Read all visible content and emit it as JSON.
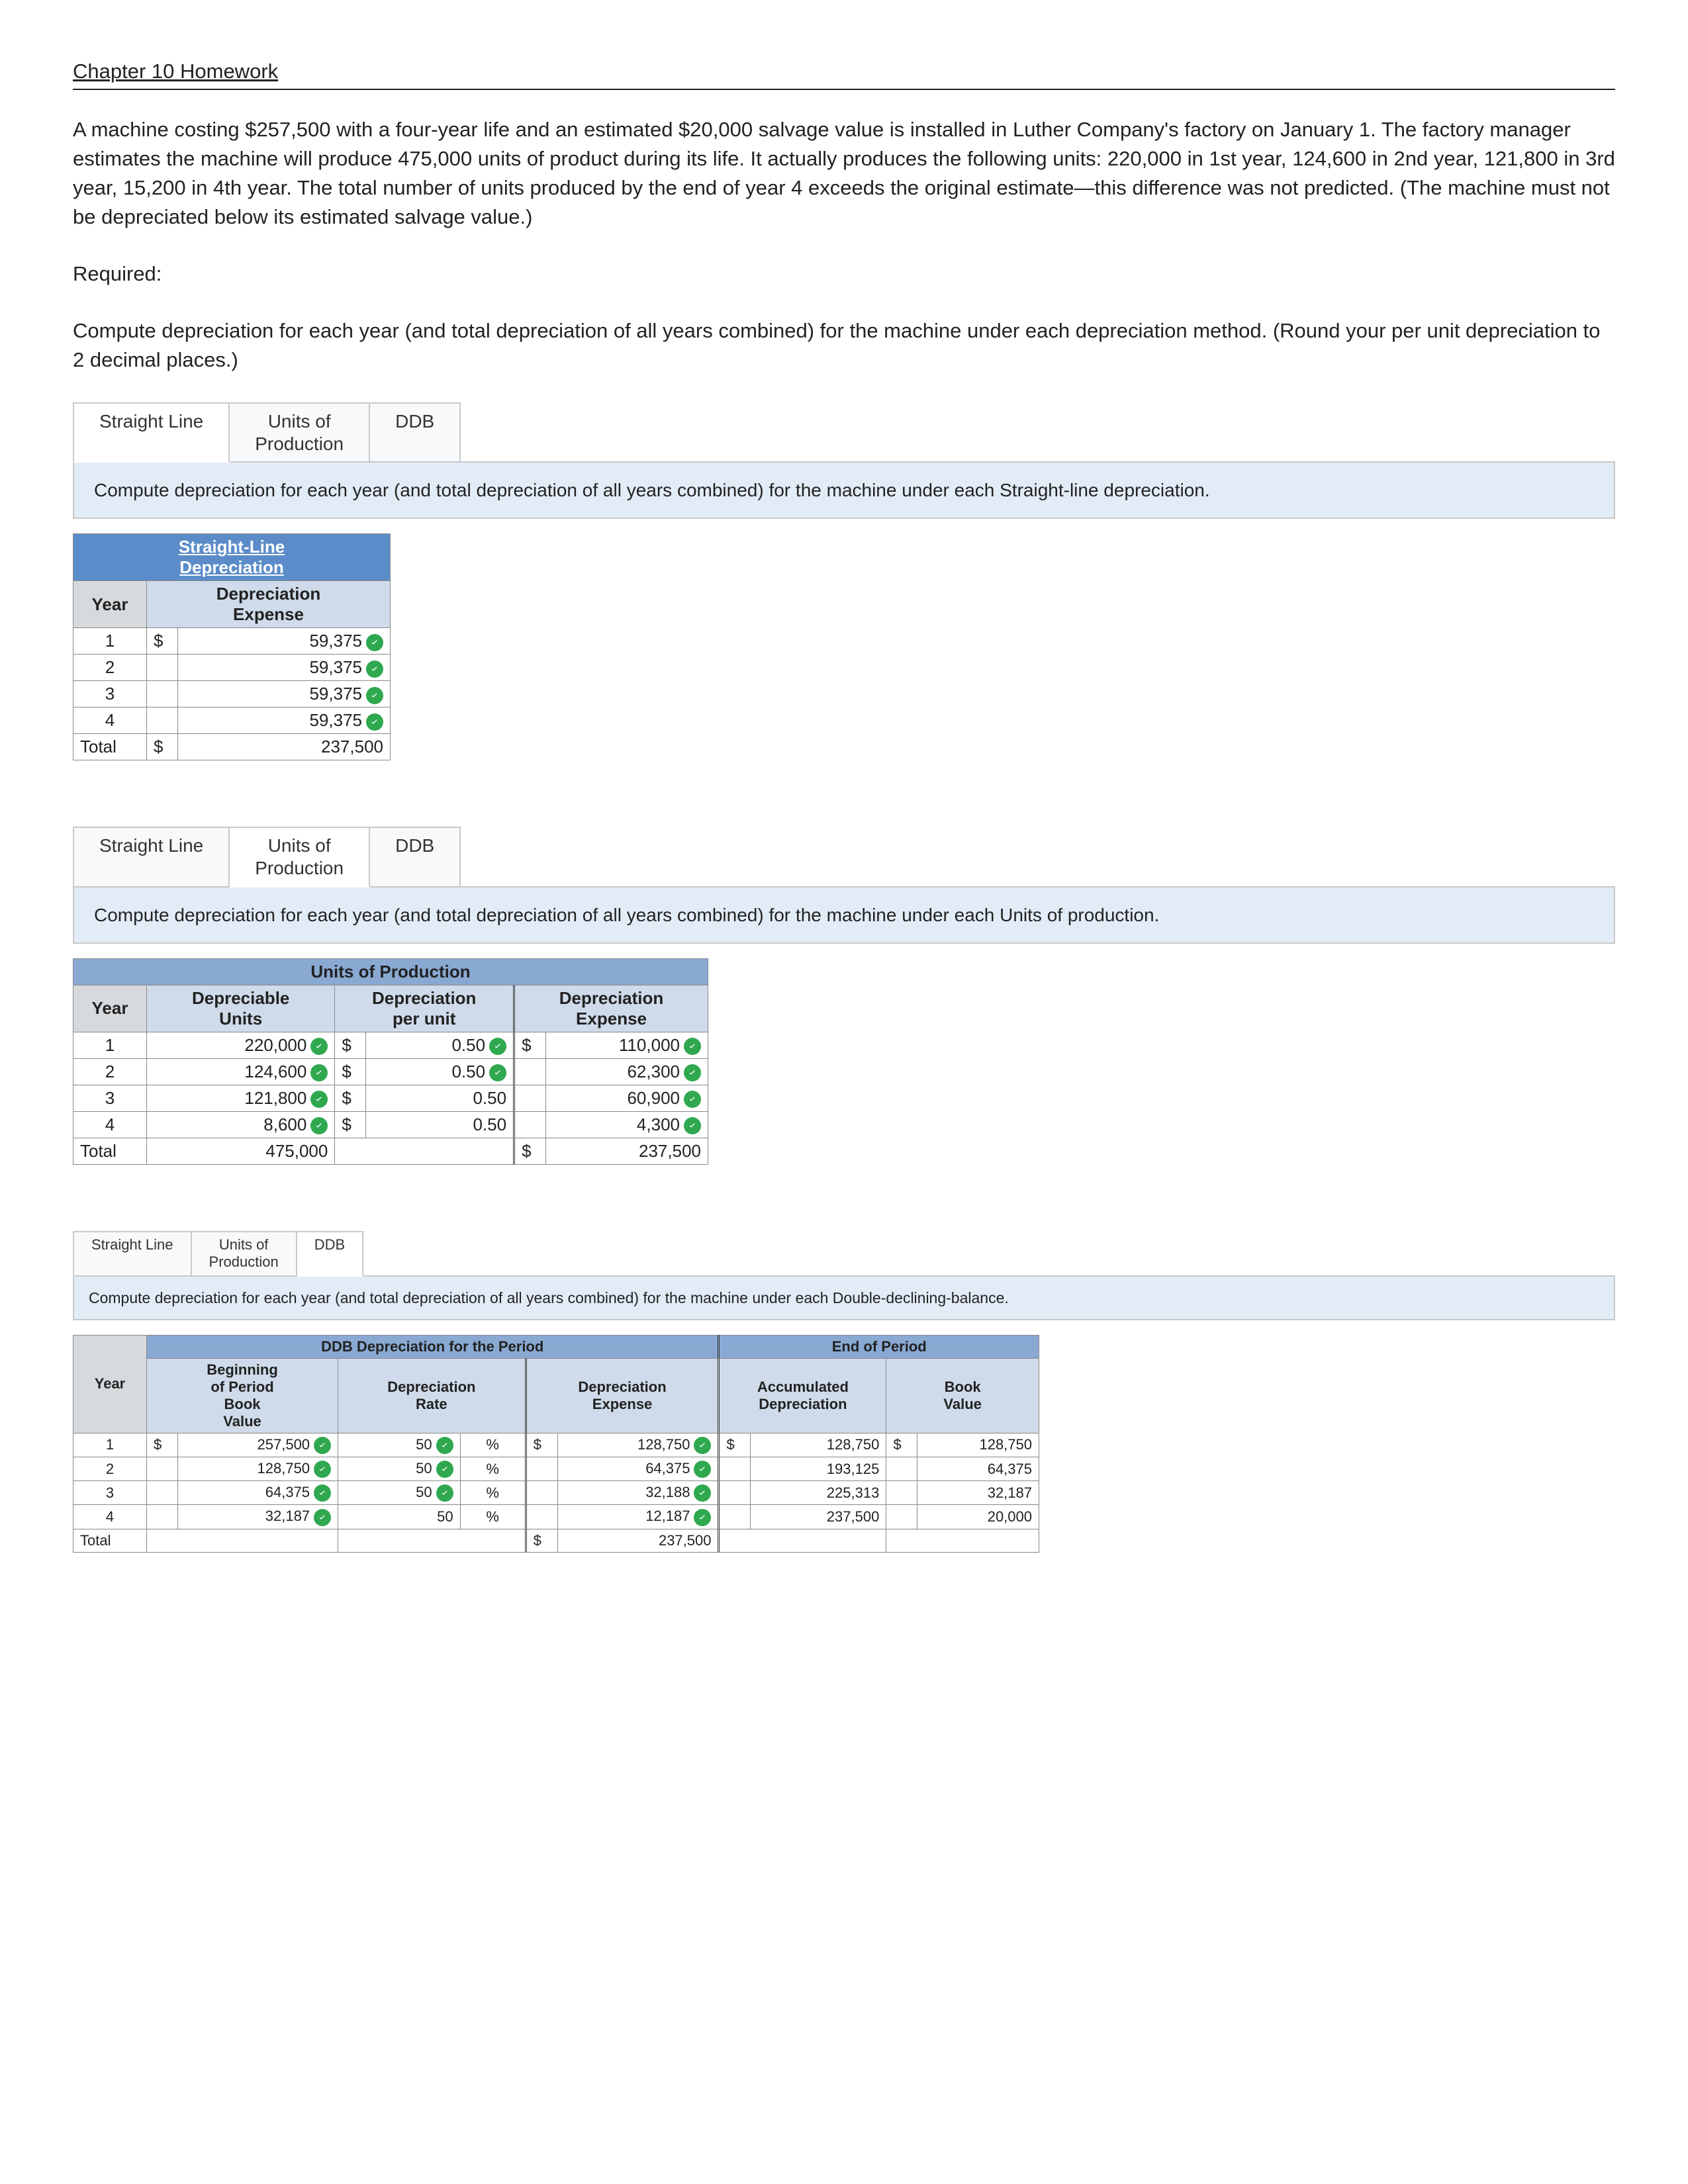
{
  "title": "Chapter 10 Homework",
  "intro": "A machine costing $257,500 with a four-year life and an estimated $20,000 salvage value is installed in Luther Company's factory on January 1. The factory manager estimates the machine will produce 475,000 units of product during its life. It actually produces the following units: 220,000 in 1st year, 124,600 in 2nd year, 121,800 in 3rd year, 15,200 in 4th year. The total number of units produced by the end of year 4 exceeds the original estimate—this difference was not predicted. (The machine must not be depreciated below its estimated salvage value.)",
  "required_label": "Required:",
  "required_text": "Compute depreciation for each year (and total depreciation of all years combined) for the machine under each depreciation method. (Round your per unit depreciation to 2 decimal places.)",
  "tabs": {
    "sl": "Straight Line",
    "uop": "Units of\nProduction",
    "ddb": "DDB"
  },
  "sl": {
    "instruction": "Compute depreciation for each year (and total depreciation of all years combined) for the machine under each Straight-line depreciation.",
    "title": "Straight-Line\nDepreciation",
    "col_year": "Year",
    "col_exp": "Depreciation\nExpense",
    "rows": [
      {
        "year": "1",
        "cur": "$",
        "val": "59,375",
        "check": true
      },
      {
        "year": "2",
        "cur": "",
        "val": "59,375",
        "check": true
      },
      {
        "year": "3",
        "cur": "",
        "val": "59,375",
        "check": true
      },
      {
        "year": "4",
        "cur": "",
        "val": "59,375",
        "check": true
      }
    ],
    "total_label": "Total",
    "total_cur": "$",
    "total_val": "237,500"
  },
  "uop": {
    "instruction": "Compute depreciation for each year (and total depreciation of all years combined) for the machine under each Units of production.",
    "title": "Units of Production",
    "col_year": "Year",
    "col_units": "Depreciable\nUnits",
    "col_per": "Depreciation\nper unit",
    "col_exp": "Depreciation\nExpense",
    "rows": [
      {
        "year": "1",
        "units": "220,000",
        "u_chk": true,
        "pcur": "$",
        "per": "0.50",
        "p_chk": true,
        "ecur": "$",
        "exp": "110,000",
        "e_chk": true
      },
      {
        "year": "2",
        "units": "124,600",
        "u_chk": true,
        "pcur": "$",
        "per": "0.50",
        "p_chk": true,
        "ecur": "",
        "exp": "62,300",
        "e_chk": true
      },
      {
        "year": "3",
        "units": "121,800",
        "u_chk": true,
        "pcur": "$",
        "per": "0.50",
        "p_chk": false,
        "ecur": "",
        "exp": "60,900",
        "e_chk": true
      },
      {
        "year": "4",
        "units": "8,600",
        "u_chk": true,
        "pcur": "$",
        "per": "0.50",
        "p_chk": false,
        "ecur": "",
        "exp": "4,300",
        "e_chk": true
      }
    ],
    "total_label": "Total",
    "total_units": "475,000",
    "total_cur": "$",
    "total_exp": "237,500"
  },
  "ddb": {
    "instruction": "Compute depreciation for each year (and total depreciation of all years combined) for the machine under each Double-declining-balance.",
    "title_left": "DDB Depreciation for the Period",
    "title_right": "End of Period",
    "col_year": "Year",
    "col_begin": "Beginning\nof Period\nBook\nValue",
    "col_rate": "Depreciation\nRate",
    "col_exp": "Depreciation\nExpense",
    "col_acc": "Accumulated\nDepreciation",
    "col_book": "Book\nValue",
    "rows": [
      {
        "year": "1",
        "bcur": "$",
        "begin": "257,500",
        "b_chk": true,
        "rate": "50",
        "r_chk": true,
        "pct": "%",
        "ecur": "$",
        "exp": "128,750",
        "e_chk": true,
        "acur": "$",
        "acc": "128,750",
        "kcur": "$",
        "book": "128,750"
      },
      {
        "year": "2",
        "bcur": "",
        "begin": "128,750",
        "b_chk": true,
        "rate": "50",
        "r_chk": true,
        "pct": "%",
        "ecur": "",
        "exp": "64,375",
        "e_chk": true,
        "acur": "",
        "acc": "193,125",
        "kcur": "",
        "book": "64,375"
      },
      {
        "year": "3",
        "bcur": "",
        "begin": "64,375",
        "b_chk": true,
        "rate": "50",
        "r_chk": true,
        "pct": "%",
        "ecur": "",
        "exp": "32,188",
        "e_chk": true,
        "acur": "",
        "acc": "225,313",
        "kcur": "",
        "book": "32,187"
      },
      {
        "year": "4",
        "bcur": "",
        "begin": "32,187",
        "b_chk": true,
        "rate": "50",
        "r_chk": false,
        "pct": "%",
        "ecur": "",
        "exp": "12,187",
        "e_chk": true,
        "acur": "",
        "acc": "237,500",
        "kcur": "",
        "book": "20,000"
      }
    ],
    "total_label": "Total",
    "total_cur": "$",
    "total_exp": "237,500"
  }
}
